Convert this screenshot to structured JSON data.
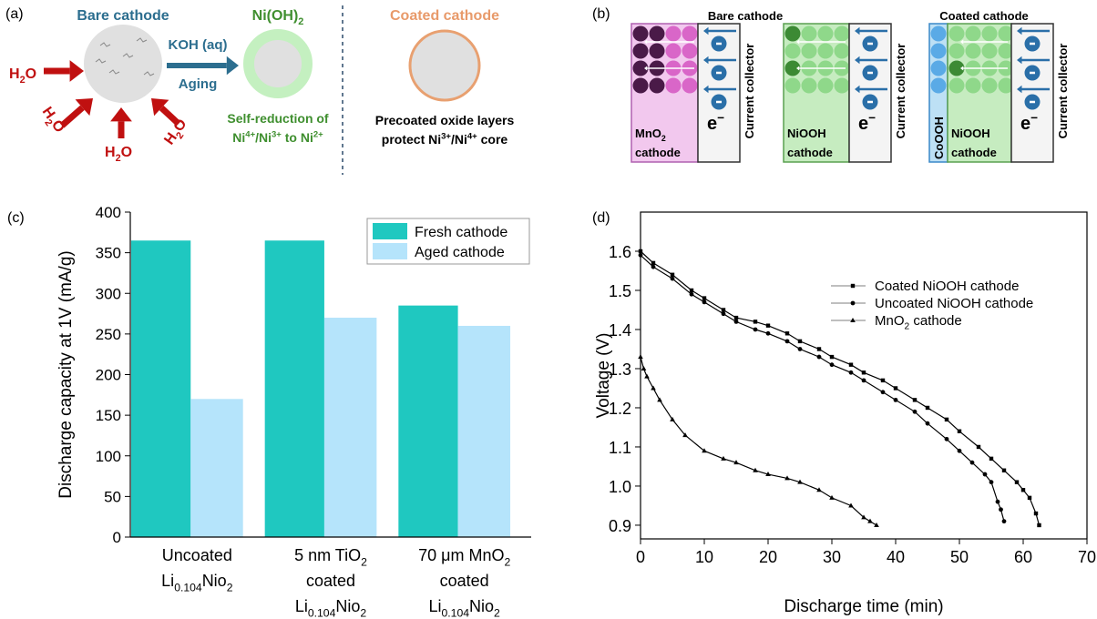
{
  "panel_a": {
    "label": "(a)",
    "bare_title": "Bare cathode",
    "water": [
      [
        "H",
        {
          "sub": "2"
        },
        "O"
      ],
      [
        "H",
        {
          "sub": "2"
        },
        "O"
      ],
      [
        "H",
        {
          "sub": "2"
        },
        "O"
      ],
      [
        "H",
        {
          "sub": "2"
        },
        "O"
      ]
    ],
    "reagent": "KOH (aq)",
    "process": "Aging",
    "product": [
      "Ni(OH)",
      {
        "sub": "2"
      }
    ],
    "product_note": [
      "Self-reduction of",
      [
        "Ni",
        {
          "sup": "4+"
        },
        "/Ni",
        {
          "sup": "3+"
        },
        " to Ni",
        {
          "sup": "2+"
        }
      ]
    ],
    "coated_title": "Coated cathode",
    "coated_note": [
      "Precoated oxide layers",
      [
        "protect Ni",
        {
          "sup": "3+"
        },
        "/Ni",
        {
          "sup": "4+"
        },
        " core"
      ]
    ]
  },
  "panel_b": {
    "label": "(b)",
    "bare_title": "Bare cathode",
    "coated_title": "Coated cathode",
    "cells": [
      {
        "material": [
          "MnO",
          {
            "sub": "2"
          }
        ],
        "role": "cathode",
        "electron": [
          "e",
          {
            "sup": "−"
          }
        ],
        "collector": "Current collector"
      },
      {
        "material": "NiOOH",
        "role": "cathode",
        "electron": [
          "e",
          {
            "sup": "−"
          }
        ],
        "collector": "Current collector"
      },
      {
        "coating": "CoOOH",
        "material": "NiOOH",
        "role": "cathode",
        "electron": [
          "e",
          {
            "sup": "−"
          }
        ],
        "collector": "Current collector"
      }
    ]
  },
  "chart_data": [
    {
      "type": "bar",
      "label": "(c)",
      "ylabel": "Discharge capacity at 1V (mA/g)",
      "categories": [
        [
          "Uncoated",
          [
            "Li",
            {
              "sub": "0.104"
            },
            "Nio",
            {
              "sub": "2"
            }
          ]
        ],
        [
          [
            "5 nm TiO",
            {
              "sub": "2"
            }
          ],
          "coated",
          [
            "Li",
            {
              "sub": "0.104"
            },
            "Nio",
            {
              "sub": "2"
            }
          ]
        ],
        [
          [
            "70 μm MnO",
            {
              "sub": "2"
            }
          ],
          "coated",
          [
            "Li",
            {
              "sub": "0.104"
            },
            "Nio",
            {
              "sub": "2"
            }
          ]
        ]
      ],
      "series": [
        {
          "name": "Fresh cathode",
          "color": "#1fc8c0",
          "values": [
            365,
            365,
            285
          ]
        },
        {
          "name": "Aged cathode",
          "color": "#b5e4fb",
          "values": [
            170,
            270,
            260
          ]
        }
      ],
      "ylim": [
        0,
        400
      ],
      "yticks": [
        0,
        50,
        100,
        150,
        200,
        250,
        300,
        350,
        400
      ],
      "legend": "upper right"
    },
    {
      "type": "line",
      "label": "(d)",
      "xlabel": "Discharge time (min)",
      "ylabel": "Voltage (V)",
      "xlim": [
        0,
        70
      ],
      "xticks": [
        0,
        10,
        20,
        30,
        40,
        50,
        60,
        70
      ],
      "ylim": [
        0.865,
        1.7
      ],
      "yticks": [
        0.9,
        {
          "value": 1,
          "label": "1.0"
        },
        1.1,
        1.2,
        1.3,
        1.4,
        1.5,
        1.6
      ],
      "legend": "upper right",
      "series": [
        {
          "name": "Coated NiOOH cathode",
          "color": "#000000",
          "marker": "square",
          "x": [
            0,
            2,
            5,
            8,
            10,
            13,
            15,
            18,
            20,
            23,
            25,
            28,
            30,
            33,
            35,
            38,
            40,
            43,
            45,
            48,
            50,
            53,
            55,
            57,
            59,
            60,
            61,
            62,
            62.5
          ],
          "values": [
            1.6,
            1.57,
            1.54,
            1.5,
            1.48,
            1.45,
            1.43,
            1.42,
            1.41,
            1.39,
            1.37,
            1.35,
            1.33,
            1.31,
            1.29,
            1.27,
            1.25,
            1.22,
            1.2,
            1.17,
            1.14,
            1.1,
            1.07,
            1.04,
            1.01,
            0.99,
            0.97,
            0.93,
            0.9
          ]
        },
        {
          "name": "Uncoated NiOOH cathode",
          "color": "#000000",
          "marker": "circle",
          "x": [
            0,
            2,
            5,
            8,
            10,
            13,
            15,
            18,
            20,
            23,
            25,
            28,
            30,
            33,
            35,
            38,
            40,
            43,
            45,
            48,
            50,
            52,
            54,
            55,
            56,
            56.5,
            57
          ],
          "values": [
            1.59,
            1.56,
            1.53,
            1.49,
            1.47,
            1.44,
            1.42,
            1.4,
            1.39,
            1.37,
            1.35,
            1.33,
            1.31,
            1.29,
            1.27,
            1.24,
            1.22,
            1.19,
            1.16,
            1.12,
            1.09,
            1.06,
            1.03,
            1.01,
            0.96,
            0.94,
            0.91
          ]
        },
        {
          "name": [
            "MnO",
            {
              "sub": "2"
            },
            " cathode"
          ],
          "color": "#000000",
          "marker": "triangle",
          "x": [
            0,
            0.5,
            1,
            2,
            3,
            5,
            7,
            10,
            13,
            15,
            18,
            20,
            23,
            25,
            28,
            30,
            33,
            35,
            36,
            37
          ],
          "values": [
            1.33,
            1.3,
            1.28,
            1.25,
            1.22,
            1.17,
            1.13,
            1.09,
            1.07,
            1.06,
            1.04,
            1.03,
            1.02,
            1.01,
            0.99,
            0.97,
            0.95,
            0.92,
            0.91,
            0.9
          ]
        }
      ]
    }
  ]
}
